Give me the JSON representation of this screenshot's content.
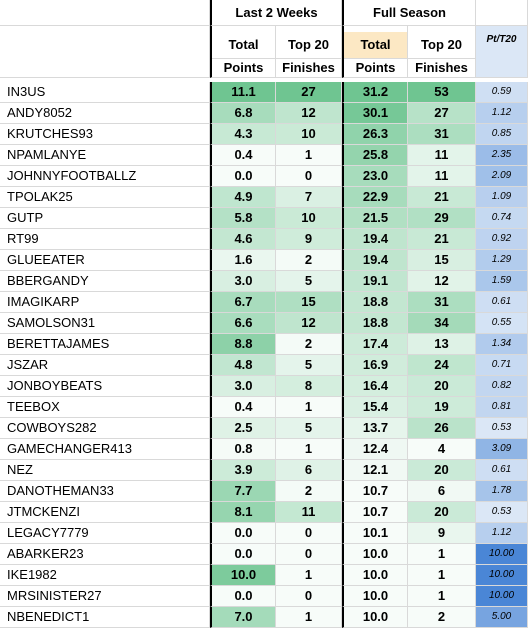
{
  "header": {
    "group1": "Last 2 Weeks",
    "group2": "Full Season",
    "ratio_title": "Pt/T20",
    "col_total_line1": "Total",
    "col_total_line2": "Points",
    "col_top20_line1": "Top 20",
    "col_top20_line2": "Finishes"
  },
  "colors": {
    "green_strong": "#5fbf85",
    "green_light": "#e8f5ec",
    "full_total_header": "#fce8c4",
    "blue_light": "#dbe7f6",
    "blue_strong": "#4a86d6",
    "grid": "#d9d9d9"
  },
  "rows": [
    {
      "name": "IN3US",
      "l2w_total": "11.1",
      "l2w_top20": "27",
      "fs_total": "31.2",
      "fs_top20": "53",
      "ratio": "0.59"
    },
    {
      "name": "ANDY8052",
      "l2w_total": "6.8",
      "l2w_top20": "12",
      "fs_total": "30.1",
      "fs_top20": "27",
      "ratio": "1.12"
    },
    {
      "name": "KRUTCHES93",
      "l2w_total": "4.3",
      "l2w_top20": "10",
      "fs_total": "26.3",
      "fs_top20": "31",
      "ratio": "0.85"
    },
    {
      "name": "NPAMLANYE",
      "l2w_total": "0.4",
      "l2w_top20": "1",
      "fs_total": "25.8",
      "fs_top20": "11",
      "ratio": "2.35"
    },
    {
      "name": "JOHNNYFOOTBALLZ",
      "l2w_total": "0.0",
      "l2w_top20": "0",
      "fs_total": "23.0",
      "fs_top20": "11",
      "ratio": "2.09"
    },
    {
      "name": "TPOLAK25",
      "l2w_total": "4.9",
      "l2w_top20": "7",
      "fs_total": "22.9",
      "fs_top20": "21",
      "ratio": "1.09"
    },
    {
      "name": "GUTP",
      "l2w_total": "5.8",
      "l2w_top20": "10",
      "fs_total": "21.5",
      "fs_top20": "29",
      "ratio": "0.74"
    },
    {
      "name": "RT99",
      "l2w_total": "4.6",
      "l2w_top20": "9",
      "fs_total": "19.4",
      "fs_top20": "21",
      "ratio": "0.92"
    },
    {
      "name": "GLUEEATER",
      "l2w_total": "1.6",
      "l2w_top20": "2",
      "fs_total": "19.4",
      "fs_top20": "15",
      "ratio": "1.29"
    },
    {
      "name": "BBERGANDY",
      "l2w_total": "3.0",
      "l2w_top20": "5",
      "fs_total": "19.1",
      "fs_top20": "12",
      "ratio": "1.59"
    },
    {
      "name": "IMAGIKARP",
      "l2w_total": "6.7",
      "l2w_top20": "15",
      "fs_total": "18.8",
      "fs_top20": "31",
      "ratio": "0.61"
    },
    {
      "name": "SAMOLSON31",
      "l2w_total": "6.6",
      "l2w_top20": "12",
      "fs_total": "18.8",
      "fs_top20": "34",
      "ratio": "0.55"
    },
    {
      "name": "BERETTAJAMES",
      "l2w_total": "8.8",
      "l2w_top20": "2",
      "fs_total": "17.4",
      "fs_top20": "13",
      "ratio": "1.34"
    },
    {
      "name": "JSZAR",
      "l2w_total": "4.8",
      "l2w_top20": "5",
      "fs_total": "16.9",
      "fs_top20": "24",
      "ratio": "0.71"
    },
    {
      "name": "JONBOYBEATS",
      "l2w_total": "3.0",
      "l2w_top20": "8",
      "fs_total": "16.4",
      "fs_top20": "20",
      "ratio": "0.82"
    },
    {
      "name": "TEEBOX",
      "l2w_total": "0.4",
      "l2w_top20": "1",
      "fs_total": "15.4",
      "fs_top20": "19",
      "ratio": "0.81"
    },
    {
      "name": "COWBOYS282",
      "l2w_total": "2.5",
      "l2w_top20": "5",
      "fs_total": "13.7",
      "fs_top20": "26",
      "ratio": "0.53"
    },
    {
      "name": "GAMECHANGER413",
      "l2w_total": "0.8",
      "l2w_top20": "1",
      "fs_total": "12.4",
      "fs_top20": "4",
      "ratio": "3.09"
    },
    {
      "name": "NEZ",
      "l2w_total": "3.9",
      "l2w_top20": "6",
      "fs_total": "12.1",
      "fs_top20": "20",
      "ratio": "0.61"
    },
    {
      "name": "DANOTHEMAN33",
      "l2w_total": "7.7",
      "l2w_top20": "2",
      "fs_total": "10.7",
      "fs_top20": "6",
      "ratio": "1.78"
    },
    {
      "name": "JTMCKENZI",
      "l2w_total": "8.1",
      "l2w_top20": "11",
      "fs_total": "10.7",
      "fs_top20": "20",
      "ratio": "0.53"
    },
    {
      "name": "LEGACY7779",
      "l2w_total": "0.0",
      "l2w_top20": "0",
      "fs_total": "10.1",
      "fs_top20": "9",
      "ratio": "1.12"
    },
    {
      "name": "ABARKER23",
      "l2w_total": "0.0",
      "l2w_top20": "0",
      "fs_total": "10.0",
      "fs_top20": "1",
      "ratio": "10.00"
    },
    {
      "name": "IKE1982",
      "l2w_total": "10.0",
      "l2w_top20": "1",
      "fs_total": "10.0",
      "fs_top20": "1",
      "ratio": "10.00"
    },
    {
      "name": "MRSINISTER27",
      "l2w_total": "0.0",
      "l2w_top20": "0",
      "fs_total": "10.0",
      "fs_top20": "1",
      "ratio": "10.00"
    },
    {
      "name": "NBENEDICT1",
      "l2w_total": "7.0",
      "l2w_top20": "1",
      "fs_total": "10.0",
      "fs_top20": "2",
      "ratio": "5.00"
    }
  ]
}
